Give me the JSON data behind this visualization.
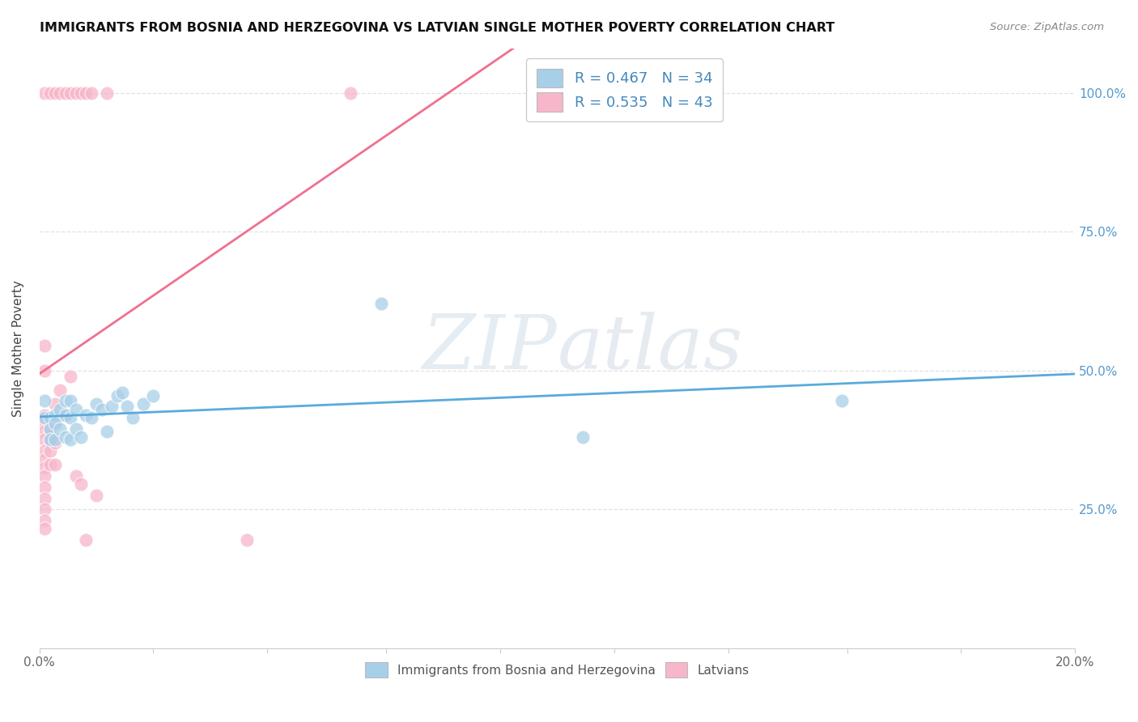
{
  "title": "IMMIGRANTS FROM BOSNIA AND HERZEGOVINA VS LATVIAN SINGLE MOTHER POVERTY CORRELATION CHART",
  "source": "Source: ZipAtlas.com",
  "ylabel": "Single Mother Poverty",
  "xmin": 0.0,
  "xmax": 0.2,
  "ymin": 0.0,
  "ymax": 1.08,
  "yticks": [
    0.0,
    0.25,
    0.5,
    0.75,
    1.0
  ],
  "ytick_labels": [
    "",
    "25.0%",
    "50.0%",
    "75.0%",
    "100.0%"
  ],
  "xtick_positions": [
    0.0,
    0.022,
    0.044,
    0.067,
    0.089,
    0.111,
    0.133,
    0.156,
    0.178,
    0.2
  ],
  "xtick_labels": [
    "0.0%",
    "",
    "",
    "",
    "",
    "",
    "",
    "",
    "",
    "20.0%"
  ],
  "legend_blue_label": "R = 0.467   N = 34",
  "legend_pink_label": "R = 0.535   N = 43",
  "legend_bottom_blue": "Immigrants from Bosnia and Herzegovina",
  "legend_bottom_pink": "Latvians",
  "blue_color": "#a8cfe8",
  "pink_color": "#f7b6c9",
  "blue_line_color": "#5aaadc",
  "pink_line_color": "#f07090",
  "blue_scatter": [
    [
      0.001,
      0.445
    ],
    [
      0.001,
      0.415
    ],
    [
      0.002,
      0.415
    ],
    [
      0.002,
      0.395
    ],
    [
      0.002,
      0.375
    ],
    [
      0.003,
      0.42
    ],
    [
      0.003,
      0.405
    ],
    [
      0.003,
      0.375
    ],
    [
      0.004,
      0.43
    ],
    [
      0.004,
      0.395
    ],
    [
      0.005,
      0.445
    ],
    [
      0.005,
      0.42
    ],
    [
      0.005,
      0.38
    ],
    [
      0.006,
      0.445
    ],
    [
      0.006,
      0.415
    ],
    [
      0.006,
      0.375
    ],
    [
      0.007,
      0.43
    ],
    [
      0.007,
      0.395
    ],
    [
      0.008,
      0.38
    ],
    [
      0.009,
      0.42
    ],
    [
      0.01,
      0.415
    ],
    [
      0.011,
      0.44
    ],
    [
      0.012,
      0.43
    ],
    [
      0.013,
      0.39
    ],
    [
      0.014,
      0.435
    ],
    [
      0.015,
      0.455
    ],
    [
      0.016,
      0.46
    ],
    [
      0.017,
      0.435
    ],
    [
      0.018,
      0.415
    ],
    [
      0.02,
      0.44
    ],
    [
      0.022,
      0.455
    ],
    [
      0.066,
      0.62
    ],
    [
      0.105,
      0.38
    ],
    [
      0.155,
      0.445
    ]
  ],
  "pink_scatter": [
    [
      0.001,
      1.0
    ],
    [
      0.002,
      1.0
    ],
    [
      0.003,
      1.0
    ],
    [
      0.004,
      1.0
    ],
    [
      0.005,
      1.0
    ],
    [
      0.006,
      1.0
    ],
    [
      0.007,
      1.0
    ],
    [
      0.008,
      1.0
    ],
    [
      0.009,
      1.0
    ],
    [
      0.01,
      1.0
    ],
    [
      0.013,
      1.0
    ],
    [
      0.06,
      1.0
    ],
    [
      0.001,
      0.545
    ],
    [
      0.001,
      0.5
    ],
    [
      0.001,
      0.42
    ],
    [
      0.001,
      0.405
    ],
    [
      0.001,
      0.39
    ],
    [
      0.001,
      0.375
    ],
    [
      0.001,
      0.355
    ],
    [
      0.001,
      0.34
    ],
    [
      0.001,
      0.325
    ],
    [
      0.001,
      0.31
    ],
    [
      0.001,
      0.29
    ],
    [
      0.001,
      0.27
    ],
    [
      0.001,
      0.25
    ],
    [
      0.001,
      0.23
    ],
    [
      0.001,
      0.215
    ],
    [
      0.002,
      0.395
    ],
    [
      0.002,
      0.375
    ],
    [
      0.002,
      0.355
    ],
    [
      0.002,
      0.33
    ],
    [
      0.003,
      0.44
    ],
    [
      0.003,
      0.405
    ],
    [
      0.003,
      0.37
    ],
    [
      0.003,
      0.33
    ],
    [
      0.004,
      0.465
    ],
    [
      0.005,
      0.42
    ],
    [
      0.006,
      0.49
    ],
    [
      0.007,
      0.31
    ],
    [
      0.008,
      0.295
    ],
    [
      0.009,
      0.195
    ],
    [
      0.011,
      0.275
    ],
    [
      0.04,
      0.195
    ]
  ],
  "watermark_zip_color": "#c8d8e8",
  "watermark_atlas_color": "#c8d0dc",
  "background_color": "#ffffff",
  "grid_color": "#e0e0e8",
  "spine_color": "#cccccc"
}
